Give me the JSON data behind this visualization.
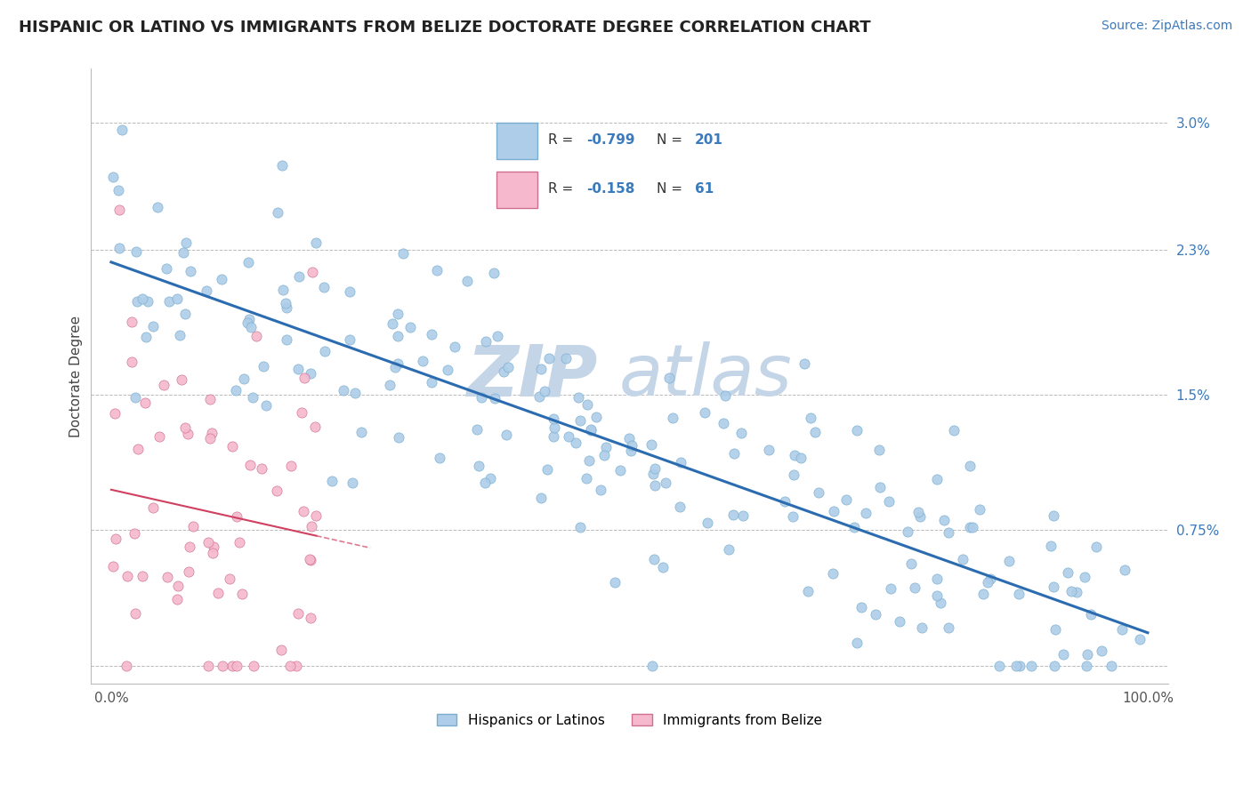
{
  "title": "HISPANIC OR LATINO VS IMMIGRANTS FROM BELIZE DOCTORATE DEGREE CORRELATION CHART",
  "source_text": "Source: ZipAtlas.com",
  "ylabel": "Doctorate Degree",
  "watermark_zip": "ZIP",
  "watermark_atlas": "atlas",
  "series1": {
    "label": "Hispanics or Latinos",
    "color": "#aecde8",
    "edge_color": "#7aaed0",
    "R": -0.799,
    "N": 201,
    "line_color": "#2b6cb0"
  },
  "series2": {
    "label": "Immigrants from Belize",
    "color": "#f5b8cc",
    "edge_color": "#d07090",
    "R": -0.158,
    "N": 61,
    "line_color": "#d04060"
  },
  "legend": {
    "R1": "-0.799",
    "N1": "201",
    "R2": "-0.158",
    "N2": "61"
  },
  "ytick_vals": [
    0.0,
    0.0075,
    0.015,
    0.023,
    0.03
  ],
  "ytick_labels": [
    "",
    "0.75%",
    "1.5%",
    "2.3%",
    "3.0%"
  ],
  "xtick_vals": [
    0,
    100
  ],
  "xtick_labels": [
    "0.0%",
    "100.0%"
  ],
  "grid_color": "#bbbbbb",
  "background_color": "#ffffff",
  "title_fontsize": 13,
  "axis_label_fontsize": 11,
  "tick_fontsize": 11,
  "source_fontsize": 10
}
